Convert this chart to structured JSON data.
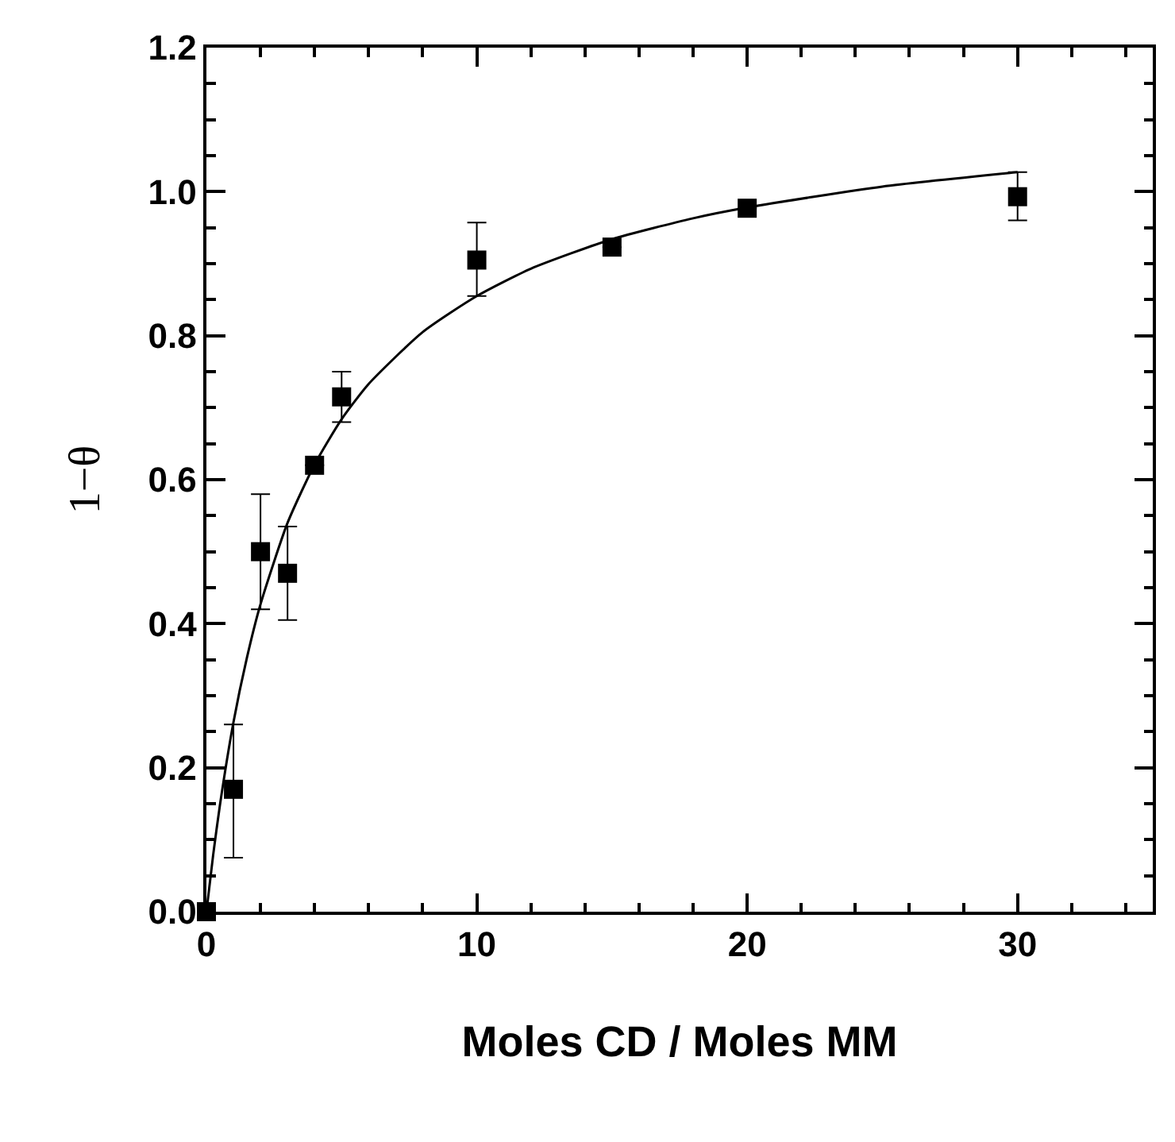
{
  "chart_data": {
    "type": "scatter",
    "xlabel": "Moles CD / Moles MM",
    "ylabel": "1−θ",
    "xlim": [
      0,
      35
    ],
    "ylim": [
      0,
      1.2
    ],
    "xticks": [
      0,
      10,
      20,
      30,
      {
        "value": 2,
        "label": null
      },
      {
        "value": 4,
        "label": null
      },
      {
        "value": 6,
        "label": null
      },
      {
        "value": 8,
        "label": null
      },
      {
        "value": 12,
        "label": null
      },
      {
        "value": 14,
        "label": null
      },
      {
        "value": 16,
        "label": null
      },
      {
        "value": 18,
        "label": null
      },
      {
        "value": 22,
        "label": null
      },
      {
        "value": 24,
        "label": null
      },
      {
        "value": 26,
        "label": null
      },
      {
        "value": 28,
        "label": null
      },
      {
        "value": 32,
        "label": null
      },
      {
        "value": 34,
        "label": null
      }
    ],
    "yticks": [
      {
        "value": 0,
        "label": "0.0"
      },
      {
        "value": 0.2,
        "label": "0.2"
      },
      {
        "value": 0.4,
        "label": "0.4"
      },
      {
        "value": 0.6,
        "label": "0.6"
      },
      {
        "value": 0.8,
        "label": "0.8"
      },
      {
        "value": 1.0,
        "label": "1.0"
      },
      {
        "value": 1.2,
        "label": "1.2"
      },
      {
        "value": 0.05,
        "label": null
      },
      {
        "value": 0.1,
        "label": null
      },
      {
        "value": 0.15,
        "label": null
      },
      {
        "value": 0.25,
        "label": null
      },
      {
        "value": 0.3,
        "label": null
      },
      {
        "value": 0.35,
        "label": null
      },
      {
        "value": 0.45,
        "label": null
      },
      {
        "value": 0.5,
        "label": null
      },
      {
        "value": 0.55,
        "label": null
      },
      {
        "value": 0.65,
        "label": null
      },
      {
        "value": 0.7,
        "label": null
      },
      {
        "value": 0.75,
        "label": null
      },
      {
        "value": 0.85,
        "label": null
      },
      {
        "value": 0.9,
        "label": null
      },
      {
        "value": 0.95,
        "label": null
      },
      {
        "value": 1.05,
        "label": null
      },
      {
        "value": 1.1,
        "label": null
      },
      {
        "value": 1.15,
        "label": null
      }
    ],
    "series": [
      {
        "marker": "square",
        "color": "#000000",
        "x": [
          0,
          1,
          2,
          3,
          4,
          5,
          10,
          15,
          20,
          30
        ],
        "values": [
          0,
          0.17,
          0.5,
          0.47,
          0.62,
          0.715,
          0.905,
          0.923,
          0.977,
          0.993
        ],
        "errors": [
          null,
          [
            0.075,
            0.26
          ],
          [
            0.42,
            0.58
          ],
          [
            0.405,
            0.535
          ],
          null,
          [
            0.68,
            0.75
          ],
          [
            0.855,
            0.957
          ],
          null,
          null,
          [
            0.96,
            1.027
          ]
        ]
      },
      {
        "type": "line",
        "line_style": "solid",
        "color": "#000000",
        "x": [
          0,
          0.25,
          0.5,
          1,
          1.5,
          2,
          3,
          4,
          5,
          6,
          8,
          10,
          12,
          15,
          18,
          20,
          25,
          30
        ],
        "values": [
          0,
          0.079,
          0.148,
          0.263,
          0.353,
          0.427,
          0.54,
          0.621,
          0.684,
          0.733,
          0.805,
          0.855,
          0.893,
          0.934,
          0.963,
          0.978,
          1.007,
          1.027
        ]
      }
    ]
  }
}
